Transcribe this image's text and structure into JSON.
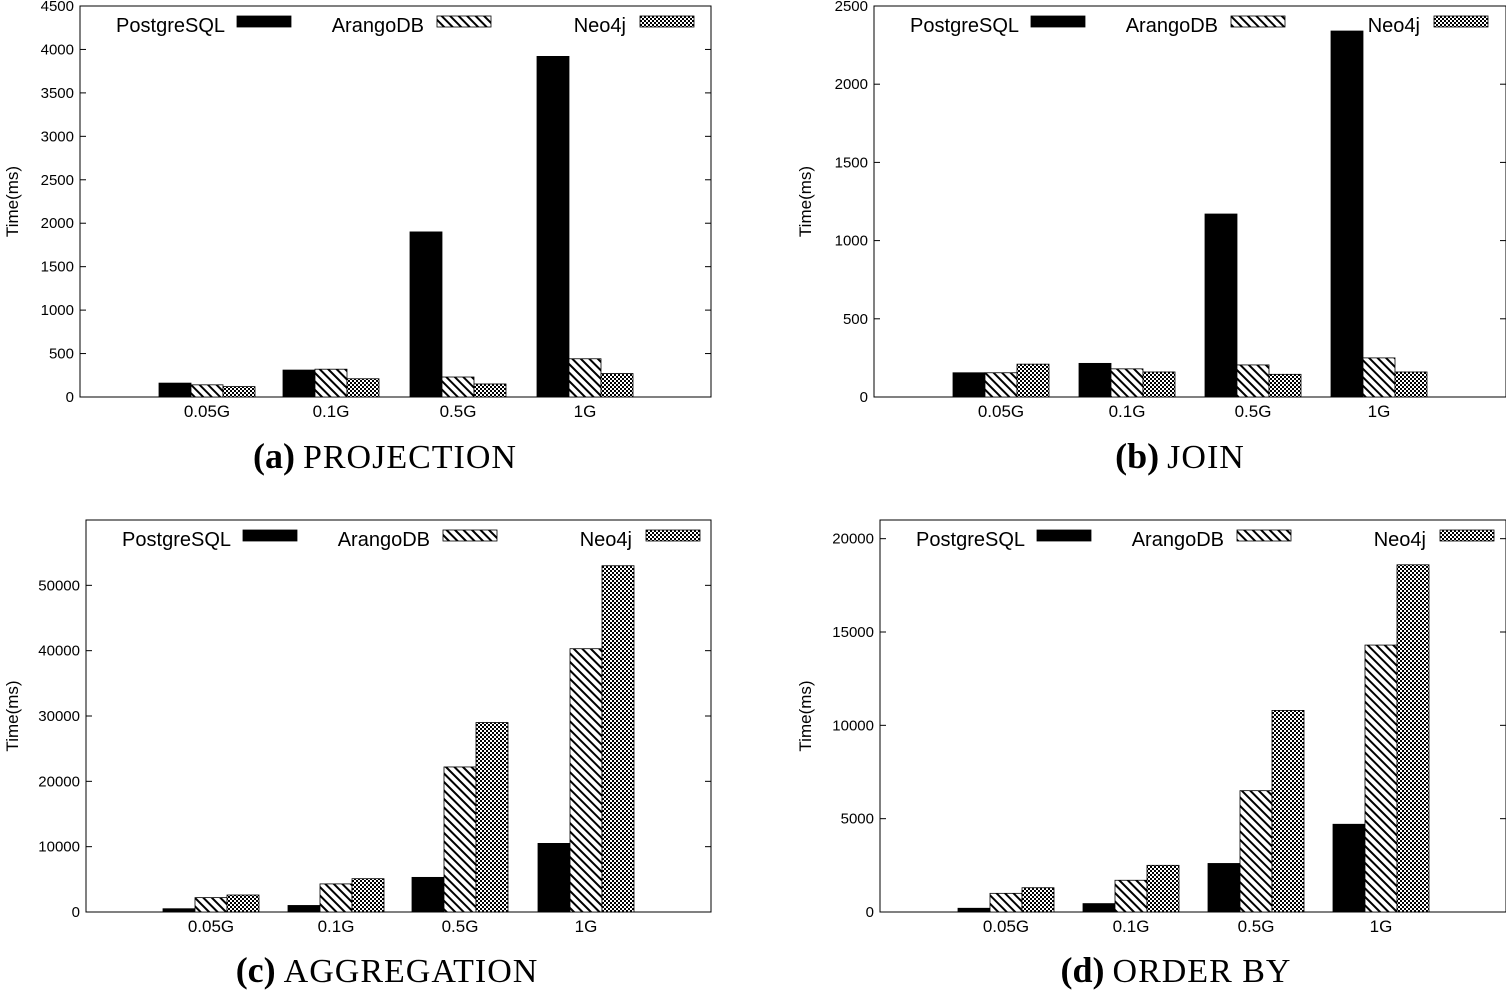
{
  "figure": {
    "patterns": {
      "PostgreSQL": "solid",
      "ArangoDB": "diagonal-hatch",
      "Neo4j": "crosshatch"
    },
    "color": "#000000"
  },
  "chart_data": [
    {
      "id": "a",
      "type": "bar",
      "caption_label": "(a)",
      "caption_name": "PROJECTION",
      "ylabel": "Time(ms)",
      "xlabel": "",
      "categories": [
        "0.05G",
        "0.1G",
        "0.5G",
        "1G"
      ],
      "ylim": [
        0,
        4500
      ],
      "yticks": [
        0,
        500,
        1000,
        1500,
        2000,
        2500,
        3000,
        3500,
        4000,
        4500
      ],
      "legend_position": "top",
      "series": [
        {
          "name": "PostgreSQL",
          "values": [
            160,
            310,
            1900,
            3920
          ]
        },
        {
          "name": "ArangoDB",
          "values": [
            140,
            320,
            230,
            440
          ]
        },
        {
          "name": "Neo4j",
          "values": [
            120,
            210,
            150,
            270
          ]
        }
      ]
    },
    {
      "id": "b",
      "type": "bar",
      "caption_label": "(b)",
      "caption_name": "JOIN",
      "ylabel": "Time(ms)",
      "xlabel": "",
      "categories": [
        "0.05G",
        "0.1G",
        "0.5G",
        "1G"
      ],
      "ylim": [
        0,
        2500
      ],
      "yticks": [
        0,
        500,
        1000,
        1500,
        2000,
        2500
      ],
      "legend_position": "top",
      "series": [
        {
          "name": "PostgreSQL",
          "values": [
            155,
            215,
            1170,
            2340
          ]
        },
        {
          "name": "ArangoDB",
          "values": [
            155,
            180,
            205,
            250
          ]
        },
        {
          "name": "Neo4j",
          "values": [
            210,
            160,
            145,
            160
          ]
        }
      ]
    },
    {
      "id": "c",
      "type": "bar",
      "caption_label": "(c)",
      "caption_name": "AGGREGATION",
      "ylabel": "Time(ms)",
      "xlabel": "",
      "categories": [
        "0.05G",
        "0.1G",
        "0.5G",
        "1G"
      ],
      "ylim": [
        0,
        60000
      ],
      "yticks": [
        0,
        10000,
        20000,
        30000,
        40000,
        50000
      ],
      "legend_position": "top",
      "series": [
        {
          "name": "PostgreSQL",
          "values": [
            500,
            1000,
            5300,
            10500
          ]
        },
        {
          "name": "ArangoDB",
          "values": [
            2200,
            4300,
            22200,
            40300
          ]
        },
        {
          "name": "Neo4j",
          "values": [
            2600,
            5100,
            29000,
            53000
          ]
        }
      ]
    },
    {
      "id": "d",
      "type": "bar",
      "caption_label": "(d)",
      "caption_name": "ORDER BY",
      "ylabel": "Time(ms)",
      "xlabel": "",
      "categories": [
        "0.05G",
        "0.1G",
        "0.5G",
        "1G"
      ],
      "ylim": [
        0,
        21000
      ],
      "yticks": [
        0,
        5000,
        10000,
        15000,
        20000
      ],
      "legend_position": "top",
      "series": [
        {
          "name": "PostgreSQL",
          "values": [
            200,
            450,
            2600,
            4700
          ]
        },
        {
          "name": "ArangoDB",
          "values": [
            1000,
            1700,
            6500,
            14300
          ]
        },
        {
          "name": "Neo4j",
          "values": [
            1300,
            2500,
            10800,
            18600
          ]
        }
      ]
    }
  ]
}
